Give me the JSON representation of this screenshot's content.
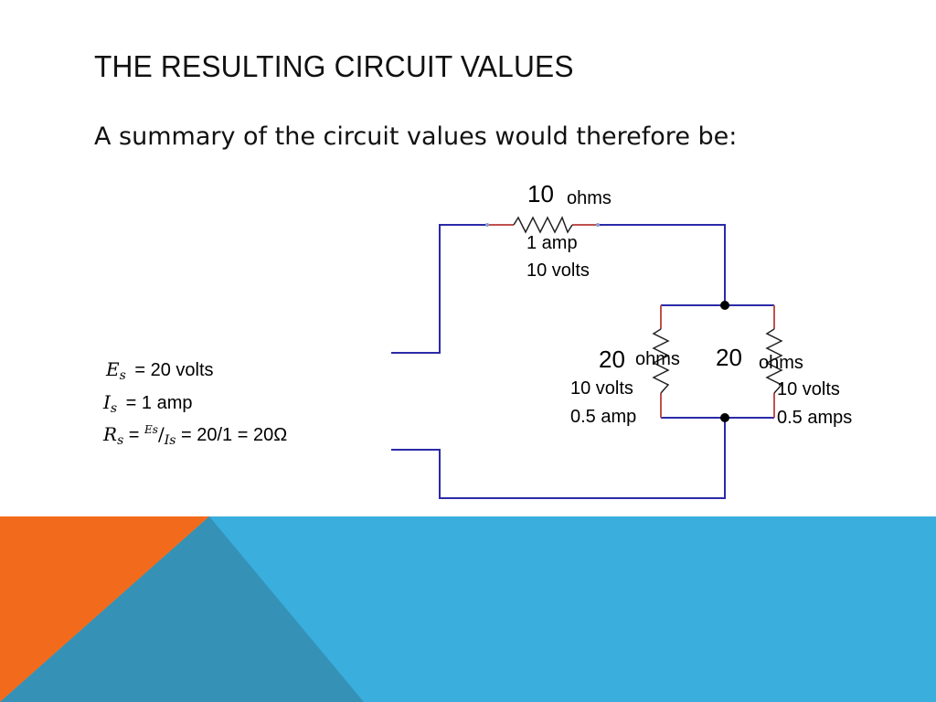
{
  "slide": {
    "title": "The Resulting Circuit Values",
    "subtitle": "A summary of the circuit values would therefore be:"
  },
  "circuit": {
    "series_resistor": {
      "value": "10",
      "unit": "ohms",
      "current": "1 amp",
      "voltage": "10 volts"
    },
    "left_parallel_resistor": {
      "value": "20",
      "unit": "ohms",
      "voltage": "10 volts",
      "current": "0.5 amp"
    },
    "right_parallel_resistor": {
      "value": "20",
      "unit": "ohms",
      "voltage": "10 volts",
      "current": "0.5 amps"
    }
  },
  "source": {
    "es_symbol": "E",
    "es_sub": "s",
    "es_value": " = 20 volts",
    "is_symbol": "I",
    "is_sub": "s",
    "is_value": " = 1 amp",
    "rs_symbol": "R",
    "rs_sub": "s",
    "rs_eq": " = ",
    "rs_frac_top": "Es",
    "rs_frac_slash": "/",
    "rs_frac_bottom": "Is",
    "rs_value": " = 20/1 = 20Ω"
  },
  "colors": {
    "wire": "#2a2aa8",
    "resistor_lead": "#c0504d",
    "footer_orange": "#f26b1d",
    "footer_blue": "#3aaedd",
    "footer_dark_blue": "#3592b6"
  }
}
